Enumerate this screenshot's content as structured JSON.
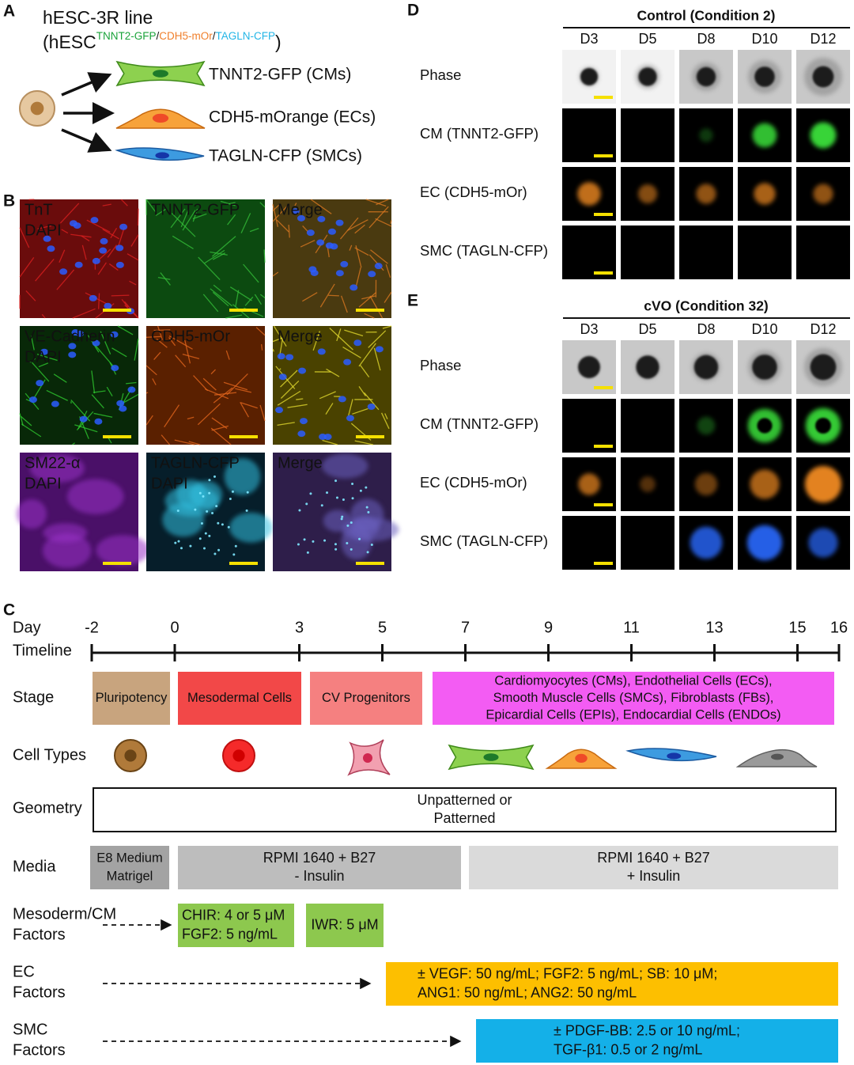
{
  "panel_a": {
    "label": "A",
    "title": "hESC-3R line",
    "reporter_prefix": "(hESC",
    "reporter_genes": [
      "TNNT2-GFP",
      "/",
      "CDH5-mOr",
      "/",
      "TAGLN-CFP"
    ],
    "reporter_suffix": ")",
    "lineages": [
      "TNNT2-GFP (CMs)",
      "CDH5-mOrange (ECs)",
      "TAGLN-CFP (SMCs)"
    ]
  },
  "panel_b": {
    "label": "B",
    "rows": [
      {
        "images": [
          {
            "labels": [
              "TnT",
              "DAPI"
            ]
          },
          {
            "labels": [
              "TNNT2-GFP"
            ]
          },
          {
            "labels": [
              "Merge"
            ]
          }
        ]
      },
      {
        "images": [
          {
            "labels": [
              "VE-Cadherin",
              "DAPI"
            ]
          },
          {
            "labels": [
              "CDH5-mOr"
            ]
          },
          {
            "labels": [
              "Merge"
            ]
          }
        ]
      },
      {
        "images": [
          {
            "labels": [
              "SM22-α",
              "DAPI"
            ]
          },
          {
            "labels": [
              "TAGLN-CFP",
              "DAPI"
            ]
          },
          {
            "labels": [
              "Merge"
            ]
          }
        ]
      }
    ]
  },
  "panel_c": {
    "label": "C",
    "day_label": "Day",
    "timeline_label": "Timeline",
    "days": [
      -2,
      0,
      3,
      5,
      7,
      9,
      11,
      13,
      15,
      16
    ],
    "stage": {
      "label": "Stage",
      "boxes": [
        {
          "lines": [
            "Pluripotency"
          ]
        },
        {
          "lines": [
            "Mesodermal Cells"
          ]
        },
        {
          "lines": [
            "CV Progenitors"
          ]
        },
        {
          "lines": [
            "Cardiomyocytes (CMs), Endothelial Cells (ECs),",
            "Smooth Muscle Cells (SMCs), Fibroblasts (FBs),",
            "Epicardial Cells (EPIs), Endocardial Cells (ENDOs)"
          ]
        }
      ]
    },
    "cell_types": {
      "label": "Cell Types"
    },
    "geometry": {
      "label": "Geometry",
      "lines": [
        "Unpatterned or",
        "Patterned"
      ]
    },
    "media": {
      "label": "Media",
      "boxes": [
        {
          "lines": [
            "E8 Medium",
            "Matrigel"
          ]
        },
        {
          "lines": [
            "RPMI 1640 + B27",
            "- Insulin"
          ]
        },
        {
          "lines": [
            "RPMI 1640 + B27",
            "+ Insulin"
          ]
        }
      ]
    },
    "mesoderm_factors": {
      "label_lines": [
        "Mesoderm/CM",
        "Factors"
      ],
      "boxes": [
        {
          "lines": [
            "CHIR: 4 or 5 μM",
            "FGF2: 5 ng/mL"
          ]
        },
        {
          "lines": [
            "IWR: 5 μM"
          ]
        }
      ]
    },
    "ec_factors": {
      "label_lines": [
        "EC",
        "Factors"
      ],
      "boxes": [
        {
          "lines": [
            "± VEGF: 50 ng/mL; FGF2: 5 ng/mL; SB: 10 μM;",
            "ANG1: 50 ng/mL; ANG2: 50 ng/mL"
          ]
        }
      ]
    },
    "smc_factors": {
      "label_lines": [
        "SMC",
        "Factors"
      ],
      "boxes": [
        {
          "lines": [
            "± PDGF-BB: 2.5 or 10 ng/mL;",
            "TGF-β1: 0.5 or 2 ng/mL"
          ]
        }
      ]
    }
  },
  "panel_d": {
    "label": "D",
    "title": "Control (Condition 2)",
    "days": [
      "D3",
      "D5",
      "D8",
      "D10",
      "D12"
    ],
    "rows": [
      "Phase",
      "CM (TNNT2-GFP)",
      "EC (CDH5-mOr)",
      "SMC (TAGLN-CFP)"
    ]
  },
  "panel_e": {
    "label": "E",
    "title": "cVO (Condition 32)",
    "days": [
      "D3",
      "D5",
      "D8",
      "D10",
      "D12"
    ],
    "rows": [
      "Phase",
      "CM (TNNT2-GFP)",
      "EC (CDH5-mOr)",
      "SMC (TAGLN-CFP)"
    ]
  }
}
